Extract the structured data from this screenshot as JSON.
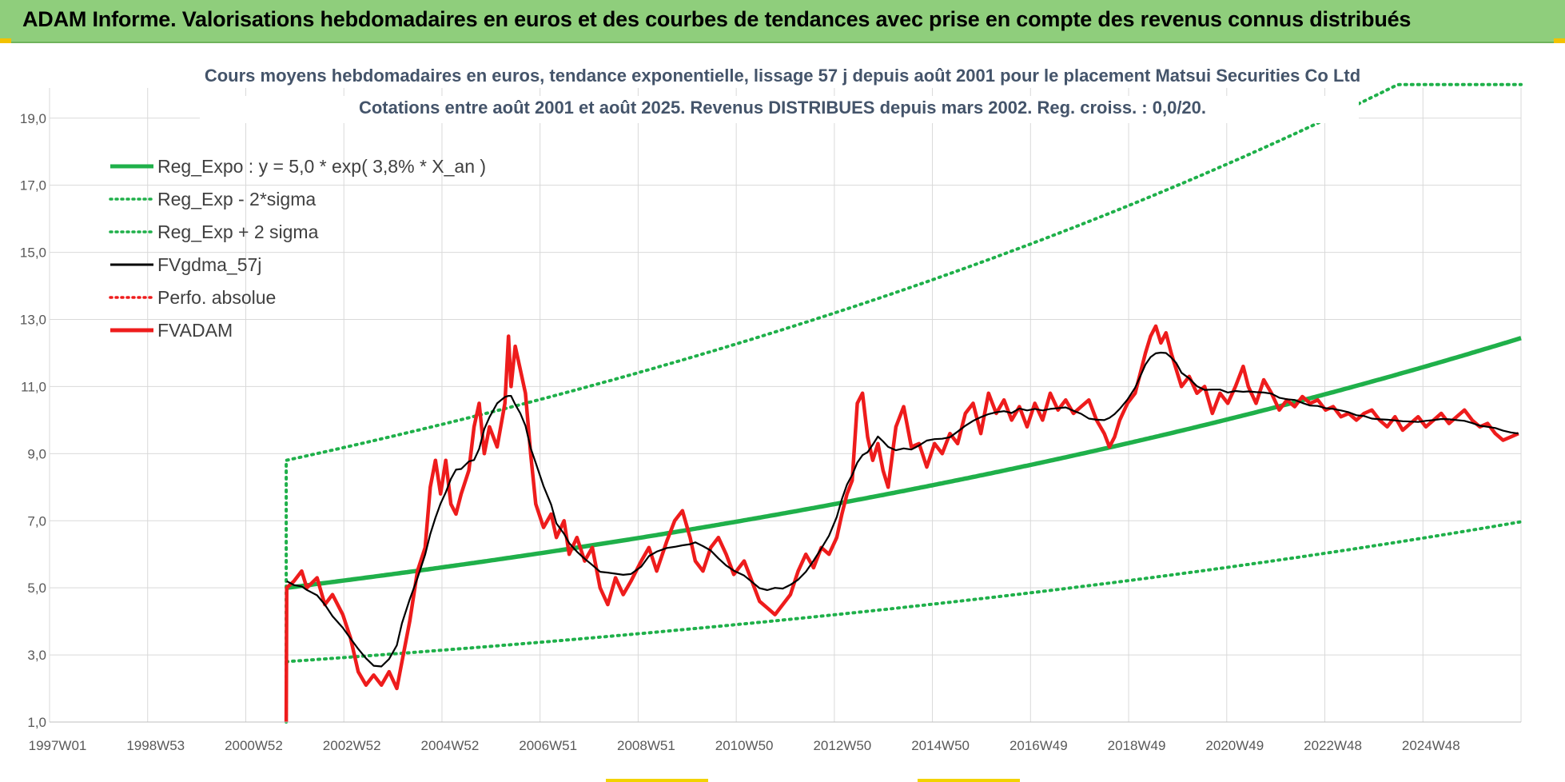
{
  "banner": {
    "title": "ADAM Informe. Valorisations hebdomadaires en euros et des courbes de tendances avec prise en compte des revenus connus distribués"
  },
  "colors": {
    "banner_bg": "#8fce7c",
    "green": "#1fb04a",
    "red": "#ee1c1c",
    "black": "#000000",
    "grid": "#d9d9d9"
  },
  "chart_data": {
    "type": "line",
    "title_lines": [
      "Cours moyens hebdomadaires en euros, tendance exponentielle, lissage 57 j depuis août 2001 pour le placement Matsui Securities Co Ltd",
      "Cotations entre août 2001 et août 2025. Revenus DISTRIBUES depuis mars 2002. Reg. croiss. : 0,0/20."
    ],
    "x_ticks": [
      "1997W01",
      "1998W53",
      "2000W52",
      "2002W52",
      "2004W52",
      "2006W51",
      "2008W51",
      "2010W50",
      "2012W50",
      "2014W50",
      "2016W49",
      "2018W49",
      "2020W49",
      "2022W48",
      "2024W48"
    ],
    "y_ticks": [
      "1,0",
      "3,0",
      "5,0",
      "7,0",
      "9,0",
      "11,0",
      "13,0",
      "15,0",
      "17,0",
      "19,0"
    ],
    "ylim": [
      1,
      19.9
    ],
    "xlim": [
      1997.0,
      2025.6
    ],
    "grid": true,
    "legend_position": "top-left",
    "legend": [
      {
        "label": "Reg_Expo : y = 5,0 * exp( 3,8% *  X_an )",
        "style": "solid-thick",
        "color": "#1fb04a"
      },
      {
        "label": "Reg_Exp - 2*sigma",
        "style": "dotted",
        "color": "#1fb04a"
      },
      {
        "label": "Reg_Exp + 2 sigma",
        "style": "dotted",
        "color": "#1fb04a"
      },
      {
        "label": "FVgdma_57j",
        "style": "solid",
        "color": "#000000"
      },
      {
        "label": "Perfo. absolue",
        "style": "dotted",
        "color": "#ee1c1c"
      },
      {
        "label": "FVADAM",
        "style": "solid-thick",
        "color": "#ee1c1c"
      }
    ],
    "series": [
      {
        "name": "Reg_Expo",
        "kind": "regression",
        "a": 5.0,
        "rate": 0.038,
        "x_start": 2001.6,
        "x_end": 2025.6
      },
      {
        "name": "Reg_Exp - 2*sigma",
        "kind": "regression",
        "a": 2.8,
        "rate": 0.038,
        "x_start": 2001.6,
        "x_end": 2025.6
      },
      {
        "name": "Reg_Exp + 2 sigma",
        "kind": "regression",
        "a": 8.8,
        "rate": 0.038,
        "x_start": 2001.6,
        "x_end": 2025.6,
        "cap": 20.0
      },
      {
        "name": "FVADAM",
        "kind": "price",
        "points": [
          [
            2001.6,
            1.0
          ],
          [
            2001.61,
            5.0
          ],
          [
            2001.75,
            5.2
          ],
          [
            2001.9,
            5.5
          ],
          [
            2002.0,
            5.0
          ],
          [
            2002.2,
            5.3
          ],
          [
            2002.35,
            4.5
          ],
          [
            2002.5,
            4.8
          ],
          [
            2002.7,
            4.2
          ],
          [
            2002.85,
            3.5
          ],
          [
            2003.0,
            2.5
          ],
          [
            2003.15,
            2.1
          ],
          [
            2003.3,
            2.4
          ],
          [
            2003.45,
            2.1
          ],
          [
            2003.6,
            2.5
          ],
          [
            2003.75,
            2.0
          ],
          [
            2003.85,
            2.8
          ],
          [
            2004.0,
            4.0
          ],
          [
            2004.15,
            5.5
          ],
          [
            2004.3,
            6.2
          ],
          [
            2004.4,
            8.0
          ],
          [
            2004.5,
            8.8
          ],
          [
            2004.6,
            7.8
          ],
          [
            2004.7,
            8.8
          ],
          [
            2004.8,
            7.5
          ],
          [
            2004.9,
            7.2
          ],
          [
            2005.0,
            7.8
          ],
          [
            2005.15,
            8.5
          ],
          [
            2005.25,
            9.8
          ],
          [
            2005.35,
            10.5
          ],
          [
            2005.45,
            9.0
          ],
          [
            2005.55,
            9.8
          ],
          [
            2005.7,
            9.2
          ],
          [
            2005.85,
            10.5
          ],
          [
            2005.92,
            12.5
          ],
          [
            2005.97,
            11.0
          ],
          [
            2006.05,
            12.2
          ],
          [
            2006.15,
            11.5
          ],
          [
            2006.25,
            10.8
          ],
          [
            2006.35,
            9.0
          ],
          [
            2006.45,
            7.5
          ],
          [
            2006.6,
            6.8
          ],
          [
            2006.75,
            7.2
          ],
          [
            2006.85,
            6.5
          ],
          [
            2007.0,
            7.0
          ],
          [
            2007.1,
            6.0
          ],
          [
            2007.25,
            6.5
          ],
          [
            2007.4,
            5.8
          ],
          [
            2007.55,
            6.2
          ],
          [
            2007.7,
            5.0
          ],
          [
            2007.85,
            4.5
          ],
          [
            2008.0,
            5.3
          ],
          [
            2008.15,
            4.8
          ],
          [
            2008.3,
            5.2
          ],
          [
            2008.5,
            5.8
          ],
          [
            2008.65,
            6.2
          ],
          [
            2008.8,
            5.5
          ],
          [
            2009.0,
            6.4
          ],
          [
            2009.15,
            7.0
          ],
          [
            2009.3,
            7.3
          ],
          [
            2009.45,
            6.5
          ],
          [
            2009.55,
            5.8
          ],
          [
            2009.7,
            5.5
          ],
          [
            2009.85,
            6.2
          ],
          [
            2010.0,
            6.5
          ],
          [
            2010.15,
            6.0
          ],
          [
            2010.3,
            5.4
          ],
          [
            2010.5,
            5.8
          ],
          [
            2010.65,
            5.2
          ],
          [
            2010.8,
            4.6
          ],
          [
            2010.95,
            4.4
          ],
          [
            2011.1,
            4.2
          ],
          [
            2011.25,
            4.5
          ],
          [
            2011.4,
            4.8
          ],
          [
            2011.55,
            5.5
          ],
          [
            2011.7,
            6.0
          ],
          [
            2011.85,
            5.6
          ],
          [
            2012.0,
            6.2
          ],
          [
            2012.15,
            6.0
          ],
          [
            2012.3,
            6.5
          ],
          [
            2012.4,
            7.2
          ],
          [
            2012.5,
            7.8
          ],
          [
            2012.6,
            8.2
          ],
          [
            2012.7,
            10.5
          ],
          [
            2012.8,
            10.8
          ],
          [
            2012.9,
            9.5
          ],
          [
            2013.0,
            8.8
          ],
          [
            2013.1,
            9.3
          ],
          [
            2013.2,
            8.5
          ],
          [
            2013.3,
            8.0
          ],
          [
            2013.45,
            9.8
          ],
          [
            2013.6,
            10.4
          ],
          [
            2013.75,
            9.2
          ],
          [
            2013.9,
            9.3
          ],
          [
            2014.05,
            8.6
          ],
          [
            2014.2,
            9.3
          ],
          [
            2014.35,
            9.0
          ],
          [
            2014.5,
            9.6
          ],
          [
            2014.65,
            9.3
          ],
          [
            2014.8,
            10.2
          ],
          [
            2014.95,
            10.5
          ],
          [
            2015.1,
            9.6
          ],
          [
            2015.25,
            10.8
          ],
          [
            2015.4,
            10.2
          ],
          [
            2015.55,
            10.6
          ],
          [
            2015.7,
            10.0
          ],
          [
            2015.85,
            10.4
          ],
          [
            2016.0,
            9.8
          ],
          [
            2016.15,
            10.5
          ],
          [
            2016.3,
            10.0
          ],
          [
            2016.45,
            10.8
          ],
          [
            2016.6,
            10.3
          ],
          [
            2016.75,
            10.6
          ],
          [
            2016.9,
            10.2
          ],
          [
            2017.05,
            10.4
          ],
          [
            2017.2,
            10.6
          ],
          [
            2017.35,
            10.0
          ],
          [
            2017.5,
            9.6
          ],
          [
            2017.6,
            9.2
          ],
          [
            2017.7,
            9.5
          ],
          [
            2017.8,
            10.0
          ],
          [
            2017.95,
            10.5
          ],
          [
            2018.1,
            10.8
          ],
          [
            2018.2,
            11.4
          ],
          [
            2018.3,
            12.0
          ],
          [
            2018.4,
            12.5
          ],
          [
            2018.5,
            12.8
          ],
          [
            2018.6,
            12.3
          ],
          [
            2018.7,
            12.6
          ],
          [
            2018.8,
            12.0
          ],
          [
            2018.9,
            11.5
          ],
          [
            2019.0,
            11.0
          ],
          [
            2019.15,
            11.3
          ],
          [
            2019.3,
            10.8
          ],
          [
            2019.45,
            11.0
          ],
          [
            2019.6,
            10.2
          ],
          [
            2019.75,
            10.8
          ],
          [
            2019.9,
            10.5
          ],
          [
            2020.05,
            11.0
          ],
          [
            2020.2,
            11.6
          ],
          [
            2020.3,
            11.0
          ],
          [
            2020.45,
            10.5
          ],
          [
            2020.6,
            11.2
          ],
          [
            2020.75,
            10.8
          ],
          [
            2020.9,
            10.3
          ],
          [
            2021.05,
            10.6
          ],
          [
            2021.2,
            10.4
          ],
          [
            2021.35,
            10.7
          ],
          [
            2021.5,
            10.5
          ],
          [
            2021.65,
            10.6
          ],
          [
            2021.8,
            10.3
          ],
          [
            2021.95,
            10.4
          ],
          [
            2022.1,
            10.1
          ],
          [
            2022.25,
            10.2
          ],
          [
            2022.4,
            10.0
          ],
          [
            2022.55,
            10.2
          ],
          [
            2022.7,
            10.3
          ],
          [
            2022.85,
            10.0
          ],
          [
            2023.0,
            9.8
          ],
          [
            2023.15,
            10.1
          ],
          [
            2023.3,
            9.7
          ],
          [
            2023.45,
            9.9
          ],
          [
            2023.6,
            10.1
          ],
          [
            2023.75,
            9.8
          ],
          [
            2023.9,
            10.0
          ],
          [
            2024.05,
            10.2
          ],
          [
            2024.2,
            9.9
          ],
          [
            2024.35,
            10.1
          ],
          [
            2024.5,
            10.3
          ],
          [
            2024.65,
            10.0
          ],
          [
            2024.8,
            9.8
          ],
          [
            2024.95,
            9.9
          ],
          [
            2025.1,
            9.6
          ],
          [
            2025.25,
            9.4
          ],
          [
            2025.4,
            9.5
          ],
          [
            2025.55,
            9.6
          ]
        ]
      },
      {
        "name": "FVgdma_57j",
        "kind": "smoothed",
        "window": 4,
        "color": "#000000"
      }
    ]
  }
}
